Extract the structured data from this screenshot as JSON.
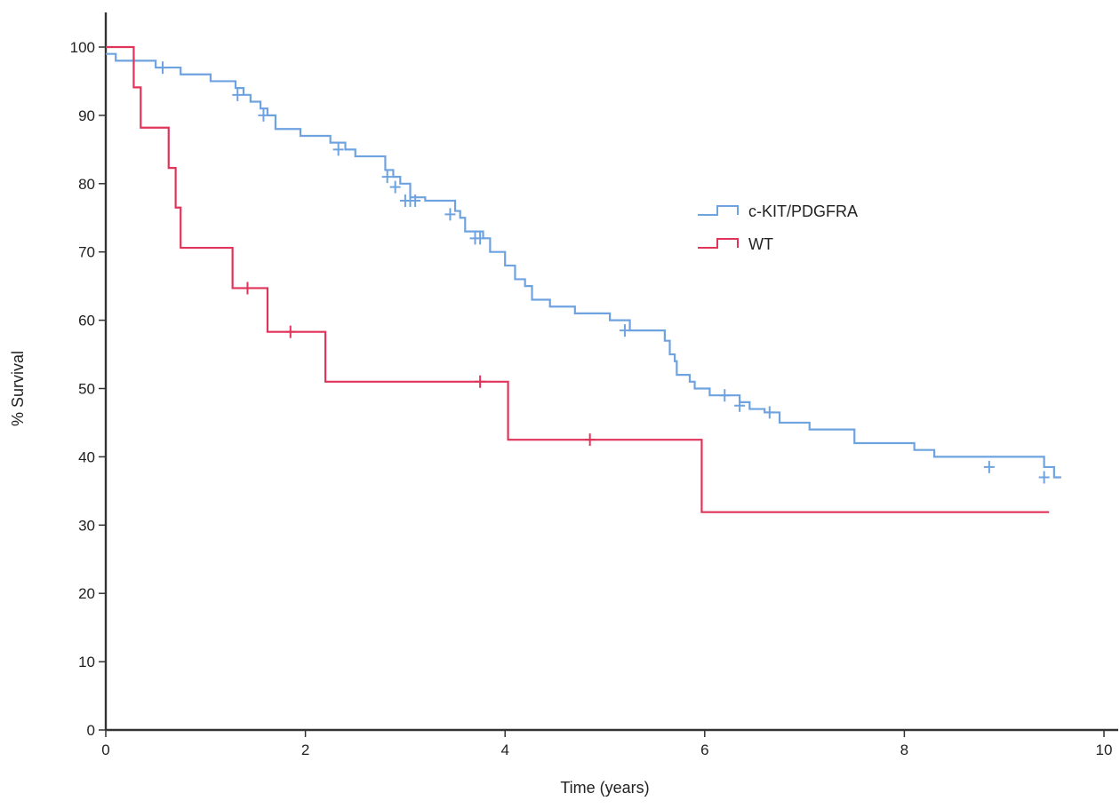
{
  "chart_data": {
    "type": "line",
    "title": "",
    "xlabel": "Time (years)",
    "ylabel": "% Survival",
    "xlim": [
      0,
      10
    ],
    "ylim": [
      0,
      100
    ],
    "x_ticks": [
      "0",
      "2",
      "4",
      "6",
      "8",
      "10"
    ],
    "y_ticks": [
      "0",
      "10",
      "20",
      "30",
      "40",
      "50",
      "60",
      "70",
      "80",
      "90",
      "100"
    ],
    "grid": false,
    "legend_position": "right",
    "step": true,
    "series": [
      {
        "name": "c-KIT/PDGFRA",
        "color": "#6fa3e0",
        "x": [
          0,
          0.1,
          0.5,
          0.75,
          1.05,
          1.3,
          1.38,
          1.45,
          1.55,
          1.62,
          1.7,
          1.95,
          2.25,
          2.4,
          2.5,
          2.8,
          2.88,
          2.95,
          3.05,
          3.2,
          3.35,
          3.5,
          3.55,
          3.6,
          3.78,
          3.85,
          4.0,
          4.1,
          4.2,
          4.27,
          4.45,
          4.55,
          4.7,
          4.9,
          5.05,
          5.25,
          5.6,
          5.65,
          5.68,
          5.7,
          5.72,
          5.75,
          5.85,
          5.9,
          6.05,
          6.35,
          6.45,
          6.6,
          6.75,
          7.05,
          7.5,
          8.1,
          8.3,
          9.4
        ],
        "y": [
          99,
          98,
          97,
          96,
          95,
          94,
          93,
          92,
          91,
          90,
          88,
          87,
          86,
          85,
          84,
          82,
          81,
          80,
          78,
          77.5,
          77.5,
          76,
          75,
          73,
          72,
          70,
          68,
          66,
          65,
          63,
          62,
          62,
          61,
          61,
          60,
          58.5,
          57,
          55,
          55,
          54,
          52,
          52,
          51,
          50,
          49,
          48,
          47,
          46.5,
          45,
          44,
          42,
          41,
          40,
          38.5
        ],
        "end_x": 9.5,
        "end_y": 37,
        "censored": [
          [
            0.57,
            97
          ],
          [
            1.32,
            93
          ],
          [
            1.58,
            90
          ],
          [
            2.33,
            85
          ],
          [
            2.82,
            81
          ],
          [
            2.9,
            79.5
          ],
          [
            3.0,
            77.5
          ],
          [
            3.05,
            77.5
          ],
          [
            3.1,
            77.5
          ],
          [
            3.45,
            75.5
          ],
          [
            3.7,
            72
          ],
          [
            3.75,
            72
          ],
          [
            5.2,
            58.5
          ],
          [
            6.2,
            49
          ],
          [
            6.35,
            47.5
          ],
          [
            6.65,
            46.5
          ],
          [
            8.85,
            38.5
          ],
          [
            9.4,
            37
          ]
        ]
      },
      {
        "name": "WT",
        "color": "#e0345a",
        "x": [
          0,
          0.28,
          0.35,
          0.63,
          0.7,
          0.75,
          1.27,
          1.62,
          2.2,
          4.03,
          5.97
        ],
        "y": [
          100,
          94.1,
          88.2,
          82.3,
          76.5,
          70.6,
          64.7,
          58.3,
          51,
          42.5,
          31.9
        ],
        "end_x": 9.45,
        "end_y": 31.9,
        "censored": [
          [
            1.42,
            64.7
          ],
          [
            1.85,
            58.3
          ],
          [
            3.75,
            51
          ],
          [
            4.85,
            42.5
          ]
        ]
      }
    ]
  }
}
